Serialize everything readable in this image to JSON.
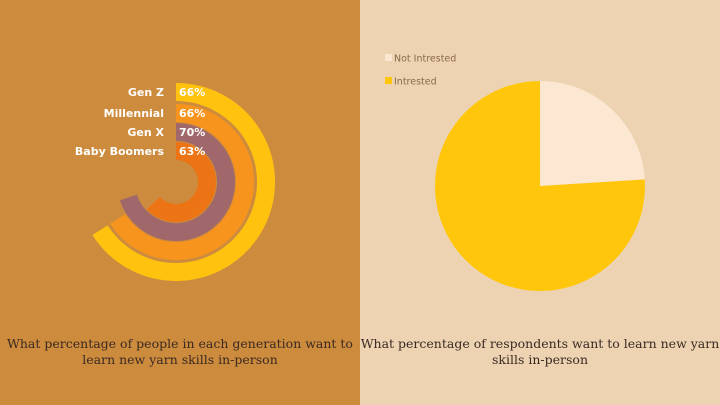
{
  "colors": {
    "left_bg": "#CD8B3D",
    "right_bg": "#EED3B3",
    "gen_z": "#FFC20F",
    "millennial": "#F7941D",
    "gen_x": "#A0686A",
    "baby_boomers": "#EC7414",
    "not_interested": "#FCE8D2",
    "interested": "#FFC60B",
    "caption_text": "#3A2A22"
  },
  "chart_data": [
    {
      "type": "radial-bar",
      "categories": [
        "Gen Z",
        "Millennial",
        "Gen X",
        "Baby Boomers"
      ],
      "values": [
        66,
        66,
        70,
        63
      ],
      "value_labels": [
        "66%",
        "66%",
        "70%",
        "63%"
      ],
      "title": "What percentage of people in each generation want to learn new yarn skills in-person",
      "title_lines": [
        "What percentage of people in each generation want to",
        "learn new yarn skills in-person"
      ],
      "ylim": [
        0,
        100
      ]
    },
    {
      "type": "pie",
      "categories": [
        "Not Intrested",
        "Intrested"
      ],
      "values": [
        24,
        76
      ],
      "title": "What percentage of  respondents want to learn new yarn skills  in-person",
      "title_lines": [
        "What percentage of  respondents want to learn new yarn",
        "skills  in-person"
      ],
      "legend": "top-left"
    }
  ]
}
